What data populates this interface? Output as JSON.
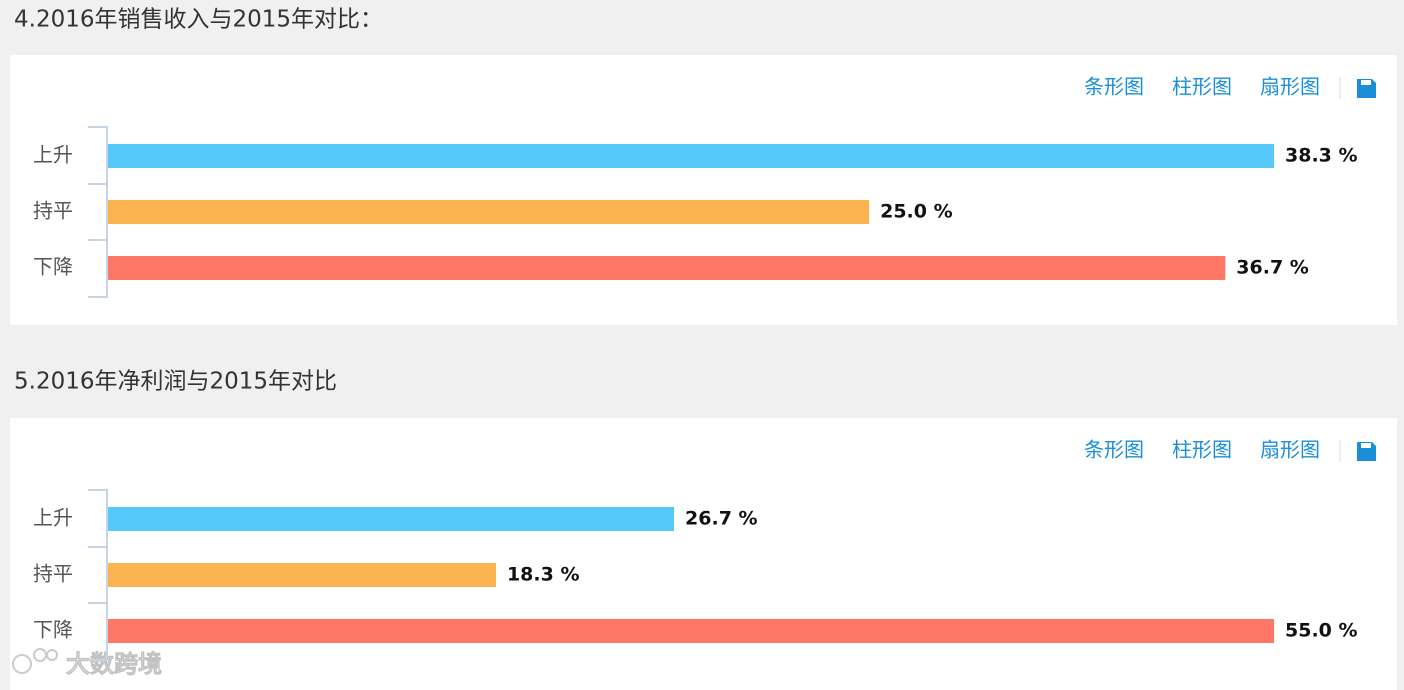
{
  "chart_data": [
    {
      "type": "bar",
      "orientation": "horizontal",
      "title": "4.2016年销售收入与2015年对比：",
      "toolbar": [
        "条形图",
        "柱形图",
        "扇形图"
      ],
      "categories": [
        "上升",
        "持平",
        "下降"
      ],
      "values": [
        38.3,
        25.0,
        36.7
      ],
      "value_labels": [
        "38.3 %",
        "25.0 %",
        "36.7 %"
      ],
      "colors": [
        "#57c8fa",
        "#fbb450",
        "#ff7766"
      ]
    },
    {
      "type": "bar",
      "orientation": "horizontal",
      "title": "5.2016年净利润与2015年对比",
      "toolbar": [
        "条形图",
        "柱形图",
        "扇形图"
      ],
      "categories": [
        "上升",
        "持平",
        "下降"
      ],
      "values": [
        26.7,
        18.3,
        55.0
      ],
      "value_labels": [
        "26.7 %",
        "18.3 %",
        "55.0 %"
      ],
      "colors": [
        "#57c8fa",
        "#fbb450",
        "#ff7766"
      ]
    }
  ],
  "watermark": "大数跨境"
}
